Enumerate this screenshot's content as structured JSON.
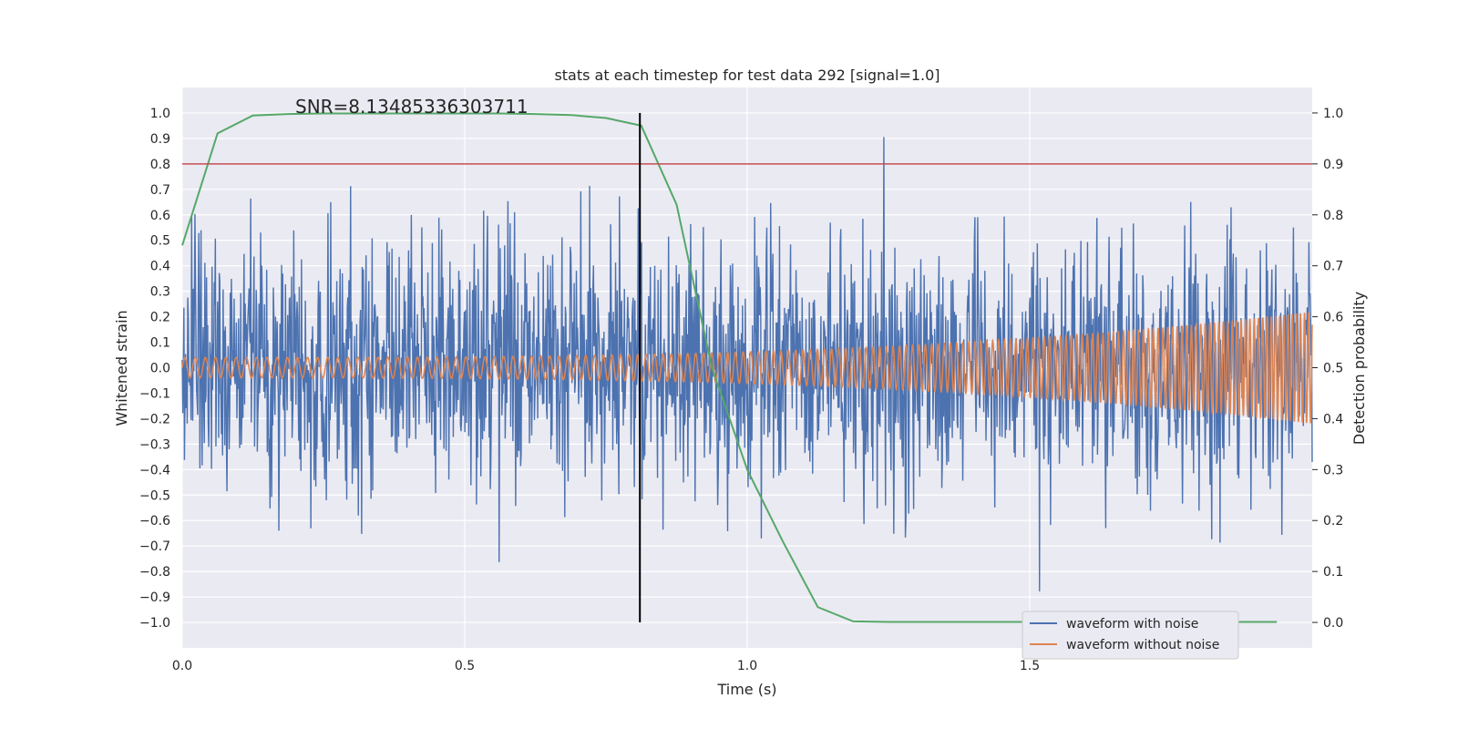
{
  "chart_data": {
    "type": "line",
    "title": "stats at each timestep for test data 292 [signal=1.0]",
    "xlabel": "Time (s)",
    "ylabel": "Whitened strain",
    "y2label": "Detection probability",
    "xlim": [
      0.0,
      2.0
    ],
    "ylim": [
      -1.1,
      1.1
    ],
    "y2lim": [
      -0.05,
      1.05
    ],
    "xticks": [
      0.0,
      0.5,
      1.0,
      1.5
    ],
    "yticks": [
      -1.0,
      -0.9,
      -0.8,
      -0.7,
      -0.6,
      -0.5,
      -0.4,
      -0.3,
      -0.2,
      -0.1,
      0.0,
      0.1,
      0.2,
      0.3,
      0.4,
      0.5,
      0.6,
      0.7,
      0.8,
      0.9,
      1.0
    ],
    "y2ticks": [
      0.0,
      0.1,
      0.2,
      0.3,
      0.4,
      0.5,
      0.6,
      0.7,
      0.8,
      0.9,
      1.0
    ],
    "grid": true,
    "legend": "lower-right",
    "annotation": "SNR=8.13485336303711",
    "threshold": {
      "y2": 0.9,
      "color": "#c44e52"
    },
    "marker_line": {
      "x": 0.81,
      "color": "#000000"
    },
    "series": [
      {
        "name": "waveform with noise",
        "axis": "left",
        "color": "#4c72b0",
        "description_samples": 2048,
        "x_range": [
          0.0,
          2.0
        ],
        "y_range": [
          -1.0,
          1.0
        ]
      },
      {
        "name": "waveform without noise",
        "axis": "left",
        "color": "#dd8452",
        "x_range": [
          0.0,
          2.0
        ],
        "amplitude_start": 0.04,
        "amplitude_end": 0.22,
        "freq_start_hz": 55,
        "freq_end_hz": 140
      },
      {
        "name": "",
        "axis": "right",
        "color": "#55a868",
        "x": [
          0.0,
          0.0625,
          0.125,
          0.1875,
          0.25,
          0.3125,
          0.375,
          0.4375,
          0.5,
          0.5625,
          0.625,
          0.6875,
          0.75,
          0.8125,
          0.875,
          0.9375,
          1.0,
          1.0625,
          1.125,
          1.1875,
          1.25,
          1.3125,
          1.375,
          1.4375,
          1.5,
          1.5625,
          1.625,
          1.6875,
          1.75,
          1.8125,
          1.875,
          1.9375
        ],
        "y": [
          0.74,
          0.96,
          0.995,
          0.998,
          0.999,
          0.999,
          0.999,
          0.999,
          0.999,
          0.999,
          0.998,
          0.996,
          0.99,
          0.975,
          0.82,
          0.5,
          0.3,
          0.16,
          0.03,
          0.002,
          0.001,
          0.001,
          0.001,
          0.001,
          0.001,
          0.001,
          0.001,
          0.001,
          0.001,
          0.001,
          0.001,
          0.001
        ]
      }
    ]
  }
}
